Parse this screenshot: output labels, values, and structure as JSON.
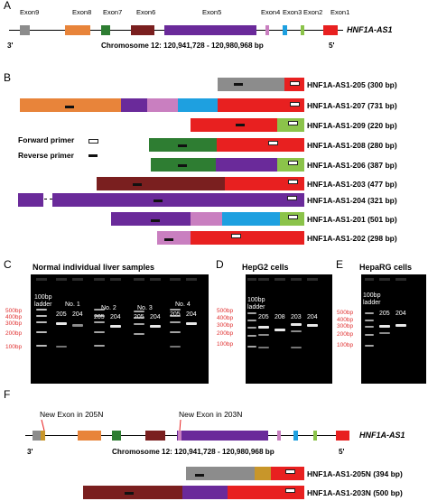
{
  "panels": {
    "a": "A",
    "b": "B",
    "c": "C",
    "d": "D",
    "e": "E",
    "f": "F"
  },
  "gene_a": {
    "exons": [
      "Exon9",
      "Exon8",
      "Exon7",
      "Exon6",
      "Exon5",
      "Exon4",
      "Exon3",
      "Exon2",
      "Exon1"
    ],
    "gene_name": "HNF1A-AS1",
    "left_end": "3'",
    "right_end": "5'",
    "chrom": "Chromosome 12: 120,941,728 - 120,980,968 bp"
  },
  "transcripts": [
    "HNF1A-AS1-205 (300 bp)",
    "HNF1A-AS1-207 (731 bp)",
    "HNF1A-AS1-209 (220 bp)",
    "HNF1A-AS1-208 (280 bp)",
    "HNF1A-AS1-206 (387 bp)",
    "HNF1A-AS1-203 (477 bp)",
    "HNF1A-AS1-204 (321 bp)",
    "HNF1A-AS1-201 (501 bp)",
    "HNF1A-AS1-202 (298 bp)"
  ],
  "legend": {
    "forward": "Forward primer",
    "reverse": "Reverse primer"
  },
  "gel_c": {
    "title": "Normal individual liver samples",
    "ladder": [
      "100bp",
      "ladder"
    ],
    "samples": [
      "No. 1",
      "No. 2",
      "No. 3",
      "No. 4"
    ],
    "lanes": [
      "205",
      "204"
    ],
    "markers": [
      "500bp",
      "400bp",
      "300bp",
      "200bp",
      "100bp"
    ]
  },
  "gel_d": {
    "title": "HepG2 cells",
    "ladder": [
      "100bp",
      "ladder"
    ],
    "lanes": [
      "205",
      "208",
      "203",
      "204"
    ],
    "markers": [
      "500bp",
      "400bp",
      "300bp",
      "200bp",
      "100bp"
    ]
  },
  "gel_e": {
    "title": "HepaRG cells",
    "ladder": [
      "100bp",
      "ladder"
    ],
    "lanes": [
      "205",
      "204"
    ],
    "markers": [
      "500bp",
      "400bp",
      "300bp",
      "200bp",
      "100bp"
    ]
  },
  "gene_f": {
    "new_exon_1": "New Exon in 205N",
    "new_exon_2": "New Exon in 203N",
    "gene_name": "HNF1A-AS1",
    "left_end": "3'",
    "right_end": "5'",
    "chrom": "Chromosome 12: 120,941,728 - 120,980,968 bp",
    "transcripts": [
      "HNF1A-AS1-205N (394 bp)",
      "HNF1A-AS1-203N (500 bp)"
    ]
  },
  "colors": {
    "exon9": "#8c8c8c",
    "exon8": "#e8843a",
    "exon7": "#2e7d32",
    "exon6": "#7a1f1f",
    "exon5": "#6a2a9a",
    "exon4": "#c97fc0",
    "exon3": "#1ea0e0",
    "exon2": "#8bc34a",
    "exon1": "#e82020",
    "newexon": "#c8962a"
  }
}
